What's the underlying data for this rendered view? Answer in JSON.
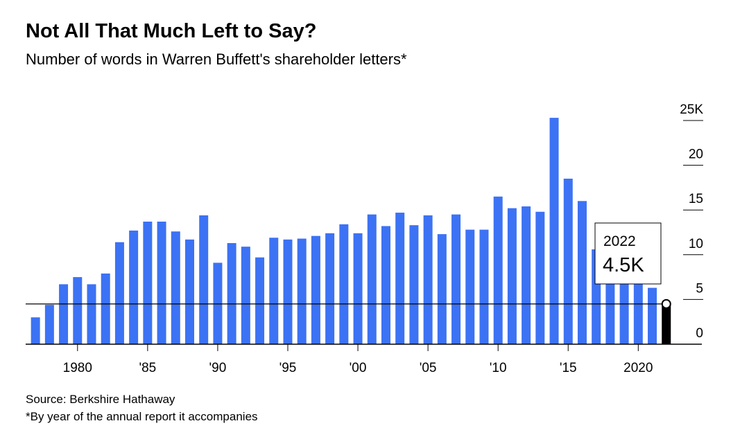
{
  "chart_data": {
    "type": "bar",
    "title": "Not All That Much Left to Say?",
    "subtitle": "Number of words in Warren Buffett's shareholder letters*",
    "x": [
      1977,
      1978,
      1979,
      1980,
      1981,
      1982,
      1983,
      1984,
      1985,
      1986,
      1987,
      1988,
      1989,
      1990,
      1991,
      1992,
      1993,
      1994,
      1995,
      1996,
      1997,
      1998,
      1999,
      2000,
      2001,
      2002,
      2003,
      2004,
      2005,
      2006,
      2007,
      2008,
      2009,
      2010,
      2011,
      2012,
      2013,
      2014,
      2015,
      2016,
      2017,
      2018,
      2019,
      2020,
      2021,
      2022
    ],
    "values": [
      3.0,
      4.4,
      6.7,
      7.5,
      6.7,
      7.9,
      11.4,
      12.7,
      13.7,
      13.7,
      12.6,
      11.7,
      14.4,
      9.1,
      11.3,
      10.9,
      9.7,
      11.9,
      11.7,
      11.8,
      12.1,
      12.4,
      13.4,
      12.4,
      14.5,
      13.2,
      14.7,
      13.3,
      14.4,
      12.3,
      14.5,
      12.8,
      12.8,
      16.5,
      15.2,
      15.4,
      14.8,
      25.3,
      18.5,
      16.0,
      10.6,
      8.5,
      8.4,
      8.1,
      6.3,
      4.5
    ],
    "color": "#3c72f4",
    "highlight_color": "#000000",
    "highlight": {
      "index": 45,
      "label": "2022",
      "value_label": "4.5K"
    },
    "xlim": [
      1976.3,
      2023.2
    ],
    "xticks": [
      1980,
      {
        "value": 1985,
        "label": "'85"
      },
      {
        "value": 1990,
        "label": "'90"
      },
      {
        "value": 1995,
        "label": "'95"
      },
      {
        "value": 2000,
        "label": "'00"
      },
      {
        "value": 2005,
        "label": "'05"
      },
      {
        "value": 2010,
        "label": "'10"
      },
      {
        "value": 2015,
        "label": "'15"
      },
      2020
    ],
    "ylim": [
      0,
      25
    ],
    "yticks": [
      0,
      5,
      10,
      15,
      20,
      {
        "value": 25,
        "label": "25K"
      }
    ],
    "source": "Source: Berkshire Hathaway",
    "footnote": "*By year of the annual report it accompanies"
  }
}
